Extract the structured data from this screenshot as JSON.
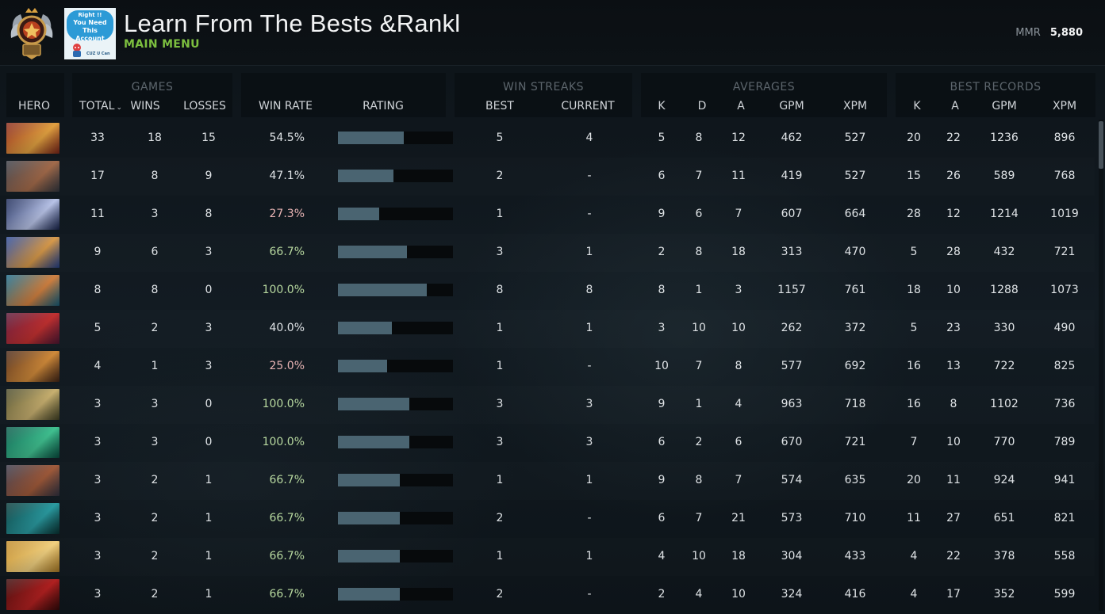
{
  "header": {
    "title": "Learn From The Bests &Rankl",
    "subtitle": "MAIN MENU",
    "mmr_label": "MMR",
    "mmr_value": "5,880",
    "rank_medal_icon": "rank-medal-icon"
  },
  "promo": {
    "line1": "Right !!",
    "line2": "You Need This",
    "line3": "Account",
    "tagline": "CUZ U Can"
  },
  "columns": {
    "groups": {
      "games": "GAMES",
      "win_streaks": "WIN STREAKS",
      "averages": "AVERAGES",
      "best_records": "BEST RECORDS"
    },
    "hero": "HERO",
    "total": "TOTAL",
    "wins": "WINS",
    "losses": "LOSSES",
    "win_rate": "WIN RATE",
    "rating": "RATING",
    "best": "BEST",
    "current": "CURRENT",
    "avg_k": "K",
    "avg_d": "D",
    "avg_a": "A",
    "avg_gpm": "GPM",
    "avg_xpm": "XPM",
    "best_k": "K",
    "best_a": "A",
    "best_gpm": "GPM",
    "best_xpm": "XPM"
  },
  "colors": {
    "rating_fill": "#4a6471",
    "win_rate_good": "#b8d9a0",
    "win_rate_bad": "#e8b4b4",
    "accent_green": "#7cbf3f"
  },
  "rows": [
    {
      "portrait": [
        "#8a2a1c",
        "#e0a040"
      ],
      "total": "33",
      "wins": "18",
      "losses": "15",
      "win_rate": "54.5%",
      "tone": "neutral",
      "rating": 0.57,
      "best": "5",
      "current": "4",
      "k": "5",
      "d": "8",
      "a": "12",
      "gpm": "462",
      "xpm": "527",
      "bk": "20",
      "ba": "22",
      "bgpm": "1236",
      "bxpm": "896"
    },
    {
      "portrait": [
        "#3b3f48",
        "#a26a4a"
      ],
      "total": "17",
      "wins": "8",
      "losses": "9",
      "win_rate": "47.1%",
      "tone": "neutral",
      "rating": 0.48,
      "best": "2",
      "current": "-",
      "k": "6",
      "d": "7",
      "a": "11",
      "gpm": "419",
      "xpm": "527",
      "bk": "15",
      "ba": "26",
      "bgpm": "589",
      "bxpm": "768"
    },
    {
      "portrait": [
        "#1c2a58",
        "#b9c4e8"
      ],
      "total": "11",
      "wins": "3",
      "losses": "8",
      "win_rate": "27.3%",
      "tone": "bad",
      "rating": 0.36,
      "best": "1",
      "current": "-",
      "k": "9",
      "d": "6",
      "a": "7",
      "gpm": "607",
      "xpm": "664",
      "bk": "28",
      "ba": "12",
      "bgpm": "1214",
      "bxpm": "1019"
    },
    {
      "portrait": [
        "#2a4a9a",
        "#d89a4a"
      ],
      "total": "9",
      "wins": "6",
      "losses": "3",
      "win_rate": "66.7%",
      "tone": "good",
      "rating": 0.6,
      "best": "3",
      "current": "1",
      "k": "2",
      "d": "8",
      "a": "18",
      "gpm": "313",
      "xpm": "470",
      "bk": "5",
      "ba": "28",
      "bgpm": "432",
      "bxpm": "721"
    },
    {
      "portrait": [
        "#1a6a8a",
        "#d08040"
      ],
      "total": "8",
      "wins": "8",
      "losses": "0",
      "win_rate": "100.0%",
      "tone": "good",
      "rating": 0.77,
      "best": "8",
      "current": "8",
      "k": "8",
      "d": "1",
      "a": "3",
      "gpm": "1157",
      "xpm": "761",
      "bk": "18",
      "ba": "10",
      "bgpm": "1288",
      "bxpm": "1073"
    },
    {
      "portrait": [
        "#5a1a3a",
        "#c03030"
      ],
      "total": "5",
      "wins": "2",
      "losses": "3",
      "win_rate": "40.0%",
      "tone": "neutral",
      "rating": 0.47,
      "best": "1",
      "current": "1",
      "k": "3",
      "d": "10",
      "a": "10",
      "gpm": "262",
      "xpm": "372",
      "bk": "5",
      "ba": "23",
      "bgpm": "330",
      "bxpm": "490"
    },
    {
      "portrait": [
        "#4a2a1a",
        "#d08a3a"
      ],
      "total": "4",
      "wins": "1",
      "losses": "3",
      "win_rate": "25.0%",
      "tone": "bad",
      "rating": 0.43,
      "best": "1",
      "current": "-",
      "k": "10",
      "d": "7",
      "a": "8",
      "gpm": "577",
      "xpm": "692",
      "bk": "16",
      "ba": "13",
      "bgpm": "722",
      "bxpm": "825"
    },
    {
      "portrait": [
        "#4a4a2a",
        "#c8b070"
      ],
      "total": "3",
      "wins": "3",
      "losses": "0",
      "win_rate": "100.0%",
      "tone": "good",
      "rating": 0.62,
      "best": "3",
      "current": "3",
      "k": "9",
      "d": "1",
      "a": "4",
      "gpm": "963",
      "xpm": "718",
      "bk": "16",
      "ba": "8",
      "bgpm": "1102",
      "bxpm": "736"
    },
    {
      "portrait": [
        "#0a5a4a",
        "#40c090"
      ],
      "total": "3",
      "wins": "3",
      "losses": "0",
      "win_rate": "100.0%",
      "tone": "good",
      "rating": 0.62,
      "best": "3",
      "current": "3",
      "k": "6",
      "d": "2",
      "a": "6",
      "gpm": "670",
      "xpm": "721",
      "bk": "7",
      "ba": "10",
      "bgpm": "770",
      "bxpm": "789"
    },
    {
      "portrait": [
        "#3a3a4a",
        "#a05a3a"
      ],
      "total": "3",
      "wins": "2",
      "losses": "1",
      "win_rate": "66.7%",
      "tone": "good",
      "rating": 0.54,
      "best": "1",
      "current": "1",
      "k": "9",
      "d": "8",
      "a": "7",
      "gpm": "574",
      "xpm": "635",
      "bk": "20",
      "ba": "11",
      "bgpm": "924",
      "bxpm": "941"
    },
    {
      "portrait": [
        "#0a3a3a",
        "#2a9aa0"
      ],
      "total": "3",
      "wins": "2",
      "losses": "1",
      "win_rate": "66.7%",
      "tone": "good",
      "rating": 0.54,
      "best": "2",
      "current": "-",
      "k": "6",
      "d": "7",
      "a": "21",
      "gpm": "573",
      "xpm": "710",
      "bk": "11",
      "ba": "27",
      "bgpm": "651",
      "bxpm": "821"
    },
    {
      "portrait": [
        "#c08a2a",
        "#f0d080"
      ],
      "total": "3",
      "wins": "2",
      "losses": "1",
      "win_rate": "66.7%",
      "tone": "good",
      "rating": 0.54,
      "best": "1",
      "current": "1",
      "k": "4",
      "d": "10",
      "a": "18",
      "gpm": "304",
      "xpm": "433",
      "bk": "4",
      "ba": "22",
      "bgpm": "378",
      "bxpm": "558"
    },
    {
      "portrait": [
        "#3a0a0a",
        "#b02020"
      ],
      "total": "3",
      "wins": "2",
      "losses": "1",
      "win_rate": "66.7%",
      "tone": "good",
      "rating": 0.54,
      "best": "2",
      "current": "-",
      "k": "2",
      "d": "4",
      "a": "10",
      "gpm": "324",
      "xpm": "416",
      "bk": "4",
      "ba": "17",
      "bgpm": "352",
      "bxpm": "599"
    }
  ]
}
